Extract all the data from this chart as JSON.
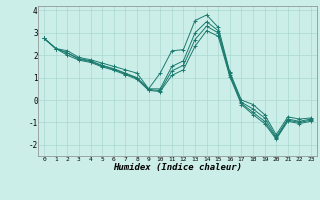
{
  "xlabel": "Humidex (Indice chaleur)",
  "ylabel": "",
  "background_color": "#cceee8",
  "grid_color": "#aad8d0",
  "line_color": "#1a7a6e",
  "xlim": [
    -0.5,
    23.5
  ],
  "ylim": [
    -2.5,
    4.2
  ],
  "xticks": [
    0,
    1,
    2,
    3,
    4,
    5,
    6,
    7,
    8,
    9,
    10,
    11,
    12,
    13,
    14,
    15,
    16,
    17,
    18,
    19,
    20,
    21,
    22,
    23
  ],
  "yticks": [
    -2,
    -1,
    0,
    1,
    2,
    3,
    4
  ],
  "series": [
    {
      "x": [
        0,
        1,
        2,
        3,
        4,
        5,
        6,
        7,
        8,
        9,
        10,
        11,
        12,
        13,
        14,
        15,
        16,
        17,
        18,
        19,
        20,
        21,
        22,
        23
      ],
      "y": [
        2.75,
        2.3,
        2.2,
        1.9,
        1.8,
        1.65,
        1.5,
        1.35,
        1.2,
        0.5,
        1.2,
        2.2,
        2.25,
        3.55,
        3.8,
        3.25,
        1.25,
        0.0,
        -0.2,
        -0.65,
        -1.55,
        -0.75,
        -0.85,
        -0.8
      ]
    },
    {
      "x": [
        0,
        1,
        2,
        3,
        4,
        5,
        6,
        7,
        8,
        9,
        10,
        11,
        12,
        13,
        14,
        15,
        16,
        17,
        18,
        19,
        20,
        21,
        22,
        23
      ],
      "y": [
        2.75,
        2.3,
        2.1,
        1.85,
        1.75,
        1.55,
        1.4,
        1.2,
        1.0,
        0.5,
        0.5,
        1.5,
        1.75,
        3.0,
        3.5,
        3.1,
        1.2,
        -0.1,
        -0.4,
        -0.8,
        -1.65,
        -0.85,
        -0.95,
        -0.85
      ]
    },
    {
      "x": [
        0,
        1,
        2,
        3,
        4,
        5,
        6,
        7,
        8,
        9,
        10,
        11,
        12,
        13,
        14,
        15,
        16,
        17,
        18,
        19,
        20,
        21,
        22,
        23
      ],
      "y": [
        2.75,
        2.3,
        2.1,
        1.82,
        1.72,
        1.52,
        1.37,
        1.17,
        0.97,
        0.47,
        0.42,
        1.3,
        1.55,
        2.7,
        3.3,
        3.0,
        1.1,
        -0.15,
        -0.55,
        -0.95,
        -1.7,
        -0.9,
        -1.0,
        -0.9
      ]
    },
    {
      "x": [
        0,
        1,
        2,
        3,
        4,
        5,
        6,
        7,
        8,
        9,
        10,
        11,
        12,
        13,
        14,
        15,
        16,
        17,
        18,
        19,
        20,
        21,
        22,
        23
      ],
      "y": [
        2.75,
        2.3,
        2.0,
        1.78,
        1.68,
        1.48,
        1.33,
        1.13,
        0.93,
        0.43,
        0.38,
        1.1,
        1.35,
        2.4,
        3.1,
        2.85,
        1.05,
        -0.2,
        -0.65,
        -1.05,
        -1.75,
        -0.95,
        -1.05,
        -0.95
      ]
    }
  ]
}
